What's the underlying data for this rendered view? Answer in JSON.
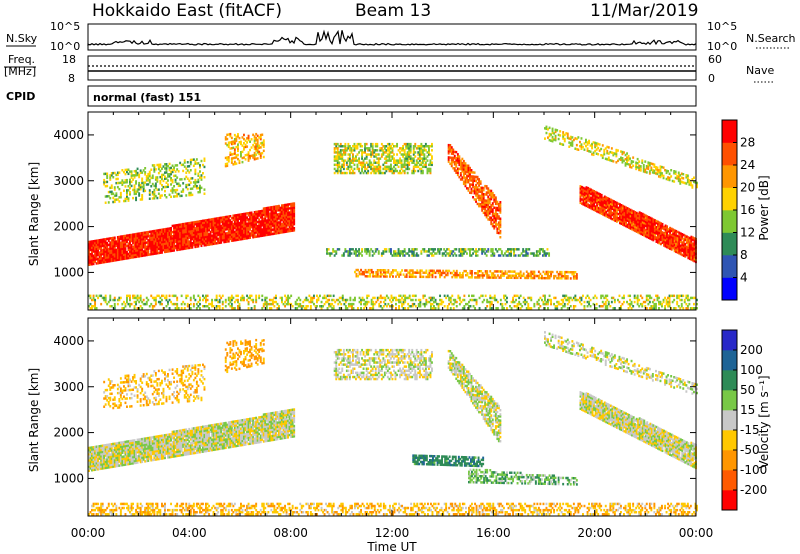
{
  "header": {
    "station": "Hokkaido East (fitACF)",
    "beam": "Beam 13",
    "date": "11/Mar/2019"
  },
  "params": {
    "nsky_label": "N.Sky",
    "nsearch_label": "N.Search",
    "nsky_scale_top": "10^5",
    "nsky_scale_bottom": "10^0",
    "freq_label_line1": "Freq.",
    "freq_label_line2": "[MHz]",
    "freq_top": "18",
    "freq_bottom": "8",
    "nave_label": "Nave",
    "nave_top": "60",
    "nave_bottom": "0",
    "cpid_label": "CPID",
    "mode": "normal (fast) 151"
  },
  "colors": {
    "power": [
      "#0000ff",
      "#2f55b3",
      "#2e8b57",
      "#7ec832",
      "#ffd200",
      "#ff9600",
      "#ff5000",
      "#ff0000"
    ],
    "velocity": [
      "#ff0000",
      "#ff5a00",
      "#ff9600",
      "#ffc800",
      "#c8c8c8",
      "#78c846",
      "#2e8b57",
      "#1e6496",
      "#2828c8"
    ]
  },
  "chart_data": [
    {
      "type": "heatmap",
      "name": "power",
      "xlabel": "",
      "ylabel": "Slant Range [km]",
      "xlim": [
        0,
        24
      ],
      "ylim": [
        180,
        4500
      ],
      "yticks": [
        "1000",
        "2000",
        "3000",
        "4000"
      ],
      "colorbar_label": "Power [dB]",
      "colorbar_ticks": [
        "4",
        "8",
        "12",
        "16",
        "20",
        "24",
        "28"
      ],
      "colorbar_range": [
        0,
        32
      ],
      "regions": [
        {
          "t": [
            0.0,
            8.1
          ],
          "r0": [
            1150,
            1900
          ],
          "r1": [
            1650,
            2500
          ],
          "level": 29,
          "density": 0.95
        },
        {
          "t": [
            0.6,
            4.6
          ],
          "r0": [
            2500,
            2700
          ],
          "r1": [
            3150,
            3500
          ],
          "level": 15,
          "density": 0.35
        },
        {
          "t": [
            5.4,
            6.9
          ],
          "r0": [
            3300,
            3500
          ],
          "r1": [
            4000,
            4000
          ],
          "level": 20,
          "density": 0.45
        },
        {
          "t": [
            9.7,
            13.6
          ],
          "r0": [
            3150,
            3150
          ],
          "r1": [
            3800,
            3800
          ],
          "level": 16,
          "density": 0.55
        },
        {
          "t": [
            14.2,
            16.3
          ],
          "r0": [
            3400,
            1700
          ],
          "r1": [
            3800,
            2500
          ],
          "level": 25,
          "density": 0.75
        },
        {
          "t": [
            18.0,
            24.0
          ],
          "r0": [
            3900,
            2800
          ],
          "r1": [
            4200,
            3050
          ],
          "level": 17,
          "density": 0.45
        },
        {
          "t": [
            19.4,
            24.0
          ],
          "r0": [
            2500,
            1200
          ],
          "r1": [
            2900,
            1700
          ],
          "level": 28,
          "density": 0.95
        },
        {
          "t": [
            9.4,
            18.2
          ],
          "r0": [
            1350,
            1350
          ],
          "r1": [
            1500,
            1500
          ],
          "level": 12,
          "density": 0.5
        },
        {
          "t": [
            10.5,
            19.3
          ],
          "r0": [
            900,
            850
          ],
          "r1": [
            1050,
            1000
          ],
          "level": 22,
          "density": 0.6
        },
        {
          "t": [
            0.0,
            24.0
          ],
          "r0": [
            200,
            200
          ],
          "r1": [
            480,
            480
          ],
          "level": 16,
          "density": 0.35
        }
      ]
    },
    {
      "type": "heatmap",
      "name": "velocity",
      "xlabel": "Time UT",
      "ylabel": "Slant Range [km]",
      "xlim": [
        0,
        24
      ],
      "xticks": [
        "00:00",
        "04:00",
        "08:00",
        "12:00",
        "16:00",
        "20:00",
        "00:00"
      ],
      "ylim": [
        180,
        4500
      ],
      "yticks": [
        "1000",
        "2000",
        "3000",
        "4000"
      ],
      "colorbar_label": "Velocity [m s⁻¹]",
      "colorbar_ticks": [
        "-200",
        "-100",
        "-50",
        "-15",
        "15",
        "50",
        "100",
        "200"
      ],
      "regions": [
        {
          "t": [
            0.0,
            8.1
          ],
          "r0": [
            1150,
            1900
          ],
          "r1": [
            1650,
            2500
          ],
          "vel": 0,
          "density": 0.95
        },
        {
          "t": [
            0.6,
            4.6
          ],
          "r0": [
            2500,
            2700
          ],
          "r1": [
            3150,
            3500
          ],
          "vel": -40,
          "density": 0.3
        },
        {
          "t": [
            5.4,
            6.9
          ],
          "r0": [
            3300,
            3500
          ],
          "r1": [
            4000,
            4000
          ],
          "vel": -60,
          "density": 0.35
        },
        {
          "t": [
            9.7,
            13.6
          ],
          "r0": [
            3150,
            3150
          ],
          "r1": [
            3800,
            3800
          ],
          "vel": 0,
          "density": 0.5
        },
        {
          "t": [
            14.2,
            16.3
          ],
          "r0": [
            3400,
            1700
          ],
          "r1": [
            3800,
            2500
          ],
          "vel": 0,
          "density": 0.75
        },
        {
          "t": [
            18.0,
            24.0
          ],
          "r0": [
            3900,
            2800
          ],
          "r1": [
            4200,
            3050
          ],
          "vel": 0,
          "density": 0.4
        },
        {
          "t": [
            19.4,
            24.0
          ],
          "r0": [
            2500,
            1200
          ],
          "r1": [
            2900,
            1700
          ],
          "vel": 0,
          "density": 0.95
        },
        {
          "t": [
            12.8,
            15.6
          ],
          "r0": [
            1300,
            1250
          ],
          "r1": [
            1500,
            1450
          ],
          "vel": 80,
          "density": 0.7
        },
        {
          "t": [
            15.0,
            19.3
          ],
          "r0": [
            900,
            850
          ],
          "r1": [
            1200,
            1000
          ],
          "vel": 40,
          "density": 0.55
        },
        {
          "t": [
            0.0,
            24.0
          ],
          "r0": [
            200,
            200
          ],
          "r1": [
            450,
            450
          ],
          "vel": -40,
          "density": 0.45
        }
      ]
    }
  ]
}
